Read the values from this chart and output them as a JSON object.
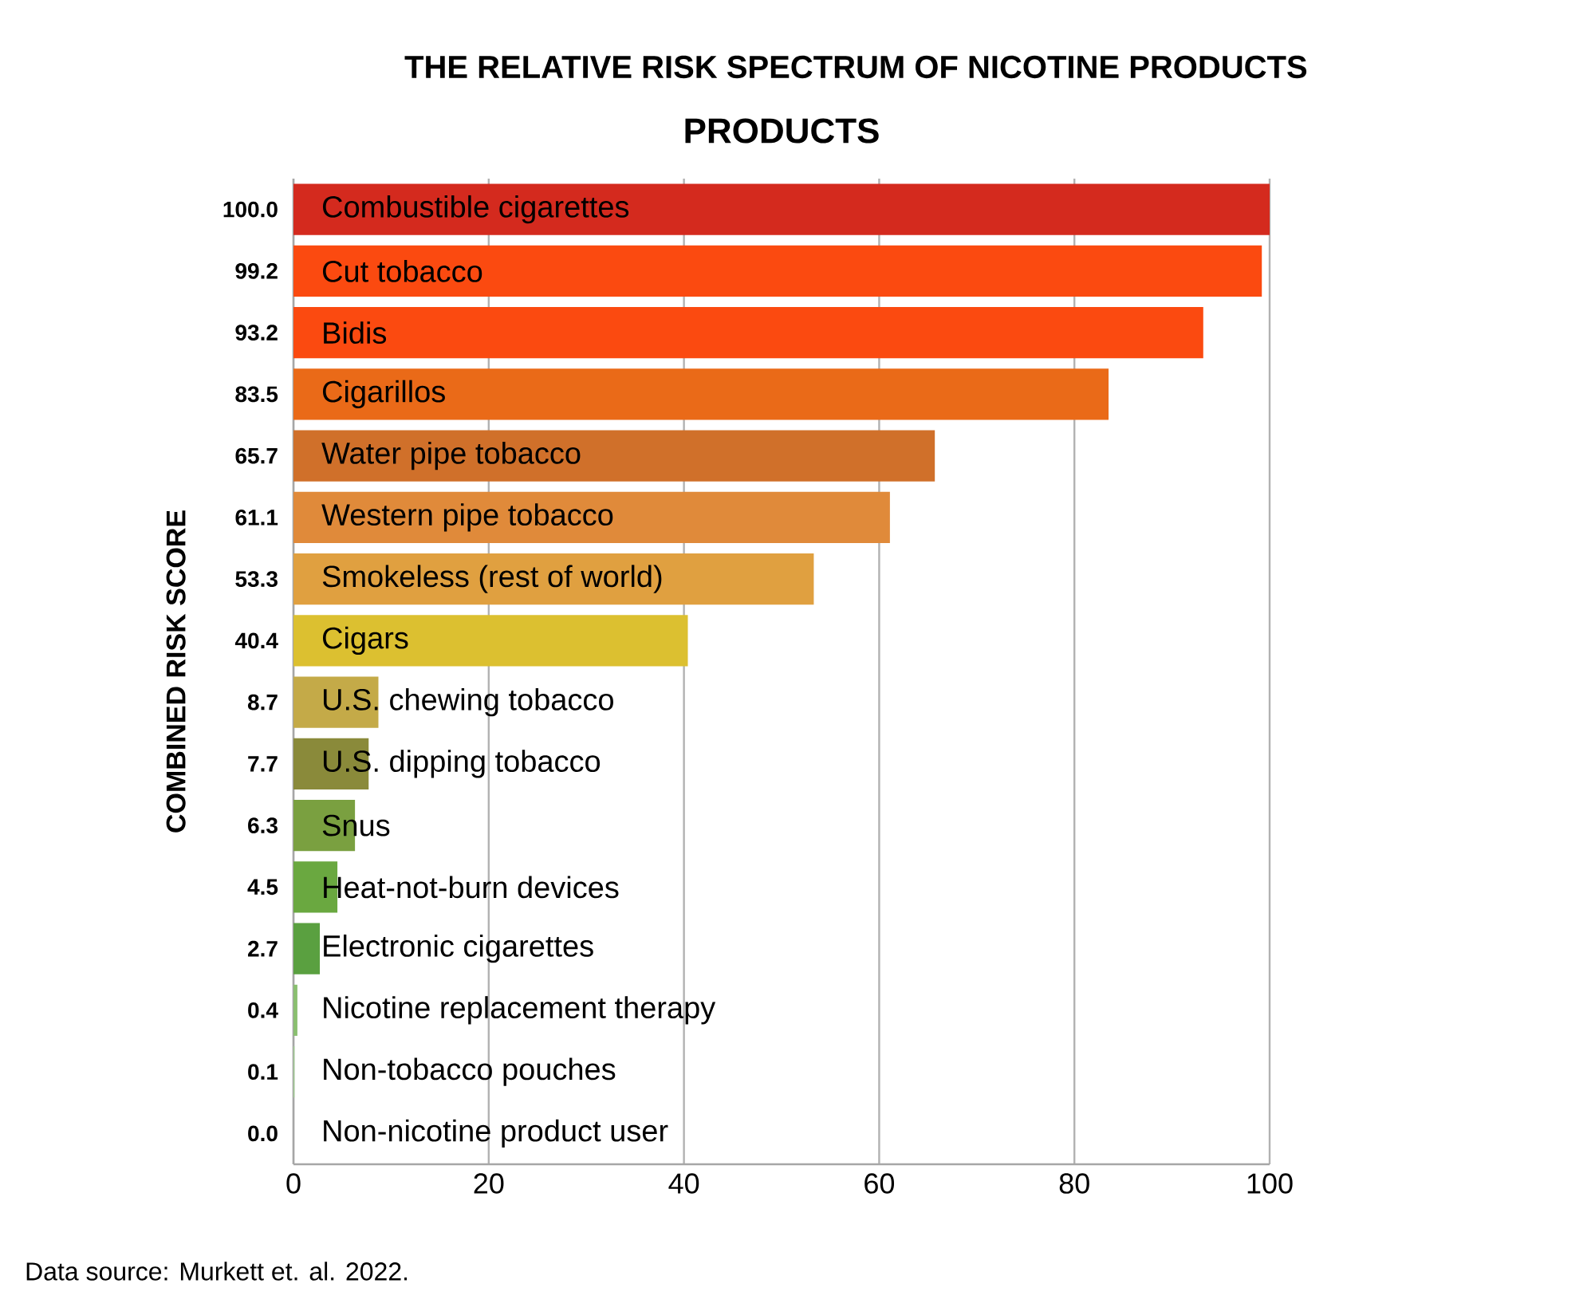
{
  "chart_data": {
    "type": "bar",
    "orientation": "horizontal",
    "title": "THE RELATIVE RISK SPECTRUM OF NICOTINE PRODUCTS",
    "subtitle": "PRODUCTS",
    "ylabel": "COMBINED RISK SCORE",
    "categories": [
      "Combustible cigarettes",
      "Cut tobacco",
      "Bidis",
      "Cigarillos",
      "Water pipe tobacco",
      "Western pipe tobacco",
      "Smokeless (rest of world)",
      "Cigars",
      "U.S. chewing tobacco",
      "U.S. dipping tobacco",
      "Snus",
      "Heat-not-burn devices",
      "Electronic cigarettes",
      "Nicotine replacement therapy",
      "Non-tobacco pouches",
      "Non-nicotine product user"
    ],
    "values": [
      100.0,
      99.2,
      93.2,
      83.5,
      65.7,
      61.1,
      53.3,
      40.4,
      8.7,
      7.7,
      6.3,
      4.5,
      2.7,
      0.4,
      0.1,
      0.0
    ],
    "value_labels": [
      "100.0",
      "99.2",
      "93.2",
      "83.5",
      "65.7",
      "61.1",
      "53.3",
      "40.4",
      "8.7",
      "7.7",
      "6.3",
      "4.5",
      "2.7",
      "0.4",
      "0.1",
      "0.0"
    ],
    "colors": [
      "#d42a1e",
      "#fb4a10",
      "#fb4a10",
      "#ea6a18",
      "#d0702a",
      "#e08a3a",
      "#e0a040",
      "#dcc030",
      "#c4aa48",
      "#8a8a3a",
      "#7aa040",
      "#6aa840",
      "#5aa040",
      "#8abf70",
      "#a0d090",
      "#a0d090"
    ],
    "xlim": [
      0,
      100
    ],
    "xticks": [
      0,
      20,
      40,
      60,
      80,
      100
    ],
    "grid": "x",
    "annotations": [
      "Data source: Murkett et. al. 2022."
    ]
  }
}
